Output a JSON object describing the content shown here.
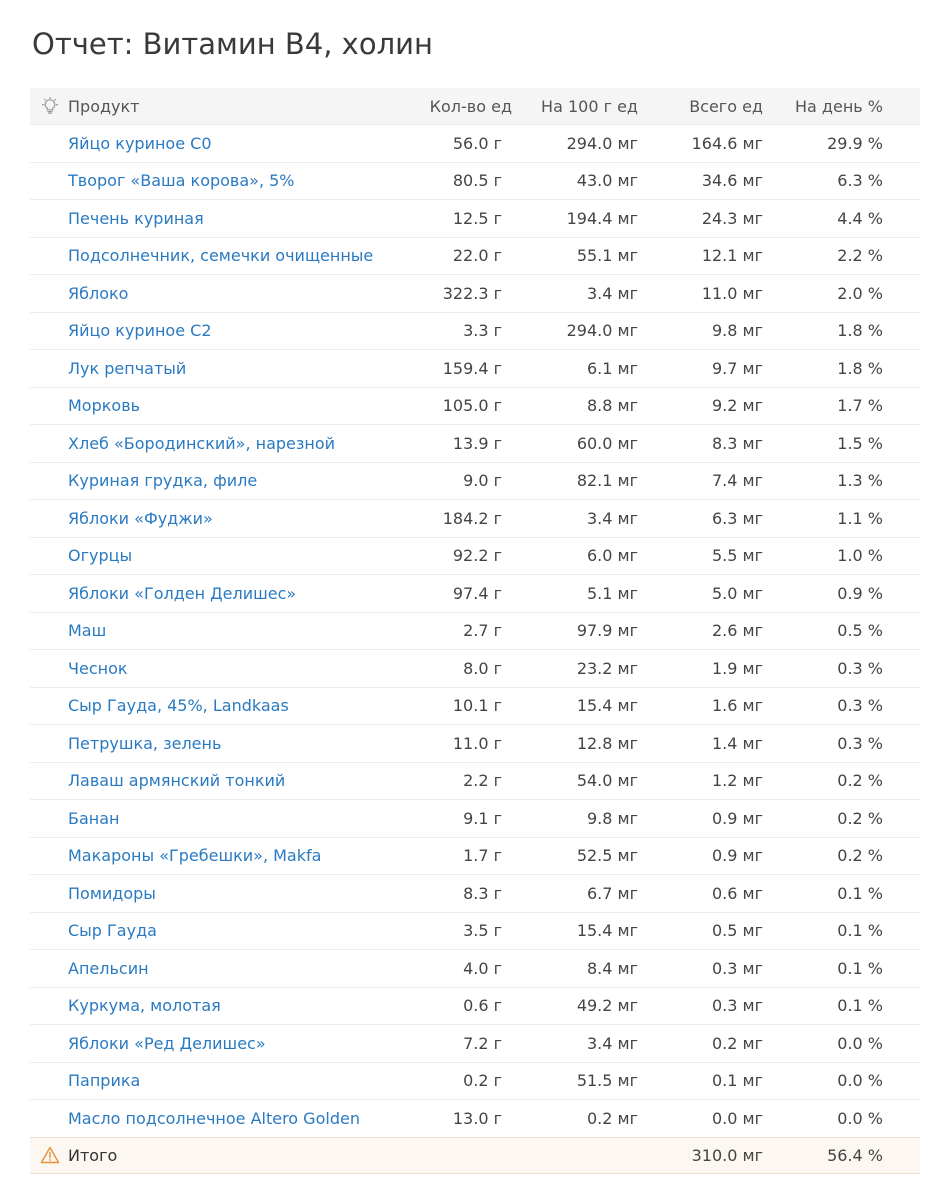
{
  "title": "Отчет: Витамин B4, холин",
  "header": {
    "product": "Продукт",
    "qty": "Кол-во ед",
    "per100": "На 100 г ед",
    "total": "Всего ед",
    "daily": "На день %"
  },
  "rows": [
    {
      "name": "Яйцо куриное С0",
      "qty": "56.0 г",
      "per100": "294.0 мг",
      "total": "164.6 мг",
      "daily": "29.9 %"
    },
    {
      "name": "Творог «Ваша корова», 5%",
      "qty": "80.5 г",
      "per100": "43.0 мг",
      "total": "34.6 мг",
      "daily": "6.3 %"
    },
    {
      "name": "Печень куриная",
      "qty": "12.5 г",
      "per100": "194.4 мг",
      "total": "24.3 мг",
      "daily": "4.4 %"
    },
    {
      "name": "Подсолнечник, семечки очищенные",
      "qty": "22.0 г",
      "per100": "55.1 мг",
      "total": "12.1 мг",
      "daily": "2.2 %"
    },
    {
      "name": "Яблоко",
      "qty": "322.3 г",
      "per100": "3.4 мг",
      "total": "11.0 мг",
      "daily": "2.0 %"
    },
    {
      "name": "Яйцо куриное С2",
      "qty": "3.3 г",
      "per100": "294.0 мг",
      "total": "9.8 мг",
      "daily": "1.8 %"
    },
    {
      "name": "Лук репчатый",
      "qty": "159.4 г",
      "per100": "6.1 мг",
      "total": "9.7 мг",
      "daily": "1.8 %"
    },
    {
      "name": "Морковь",
      "qty": "105.0 г",
      "per100": "8.8 мг",
      "total": "9.2 мг",
      "daily": "1.7 %"
    },
    {
      "name": "Хлеб «Бородинский», нарезной",
      "qty": "13.9 г",
      "per100": "60.0 мг",
      "total": "8.3 мг",
      "daily": "1.5 %"
    },
    {
      "name": "Куриная грудка, филе",
      "qty": "9.0 г",
      "per100": "82.1 мг",
      "total": "7.4 мг",
      "daily": "1.3 %"
    },
    {
      "name": "Яблоки «Фуджи»",
      "qty": "184.2 г",
      "per100": "3.4 мг",
      "total": "6.3 мг",
      "daily": "1.1 %"
    },
    {
      "name": "Огурцы",
      "qty": "92.2 г",
      "per100": "6.0 мг",
      "total": "5.5 мг",
      "daily": "1.0 %"
    },
    {
      "name": "Яблоки «Голден Делишес»",
      "qty": "97.4 г",
      "per100": "5.1 мг",
      "total": "5.0 мг",
      "daily": "0.9 %"
    },
    {
      "name": "Маш",
      "qty": "2.7 г",
      "per100": "97.9 мг",
      "total": "2.6 мг",
      "daily": "0.5 %"
    },
    {
      "name": "Чеснок",
      "qty": "8.0 г",
      "per100": "23.2 мг",
      "total": "1.9 мг",
      "daily": "0.3 %"
    },
    {
      "name": "Сыр Гауда, 45%, Landkaas",
      "qty": "10.1 г",
      "per100": "15.4 мг",
      "total": "1.6 мг",
      "daily": "0.3 %"
    },
    {
      "name": "Петрушка, зелень",
      "qty": "11.0 г",
      "per100": "12.8 мг",
      "total": "1.4 мг",
      "daily": "0.3 %"
    },
    {
      "name": "Лаваш армянский тонкий",
      "qty": "2.2 г",
      "per100": "54.0 мг",
      "total": "1.2 мг",
      "daily": "0.2 %"
    },
    {
      "name": "Банан",
      "qty": "9.1 г",
      "per100": "9.8 мг",
      "total": "0.9 мг",
      "daily": "0.2 %"
    },
    {
      "name": "Макароны «Гребешки», Makfa",
      "qty": "1.7 г",
      "per100": "52.5 мг",
      "total": "0.9 мг",
      "daily": "0.2 %"
    },
    {
      "name": "Помидоры",
      "qty": "8.3 г",
      "per100": "6.7 мг",
      "total": "0.6 мг",
      "daily": "0.1 %"
    },
    {
      "name": "Сыр Гауда",
      "qty": "3.5 г",
      "per100": "15.4 мг",
      "total": "0.5 мг",
      "daily": "0.1 %"
    },
    {
      "name": "Апельсин",
      "qty": "4.0 г",
      "per100": "8.4 мг",
      "total": "0.3 мг",
      "daily": "0.1 %"
    },
    {
      "name": "Куркума, молотая",
      "qty": "0.6 г",
      "per100": "49.2 мг",
      "total": "0.3 мг",
      "daily": "0.1 %"
    },
    {
      "name": "Яблоки «Ред Делишес»",
      "qty": "7.2 г",
      "per100": "3.4 мг",
      "total": "0.2 мг",
      "daily": "0.0 %"
    },
    {
      "name": "Паприка",
      "qty": "0.2 г",
      "per100": "51.5 мг",
      "total": "0.1 мг",
      "daily": "0.0 %"
    },
    {
      "name": "Масло подсолнечное Altero Golden",
      "qty": "13.0 г",
      "per100": "0.2 мг",
      "total": "0.0 мг",
      "daily": "0.0 %"
    }
  ],
  "summary": {
    "label": "Итого",
    "total": "310.0 мг",
    "daily": "56.4 %"
  },
  "icons": {
    "header": "lightbulb-icon",
    "summary": "warning-icon"
  },
  "colors": {
    "link": "#2a7ac2",
    "header_bg": "#f5f5f5",
    "summary_bg": "#fcf7f1",
    "warning": "#e8913a"
  }
}
